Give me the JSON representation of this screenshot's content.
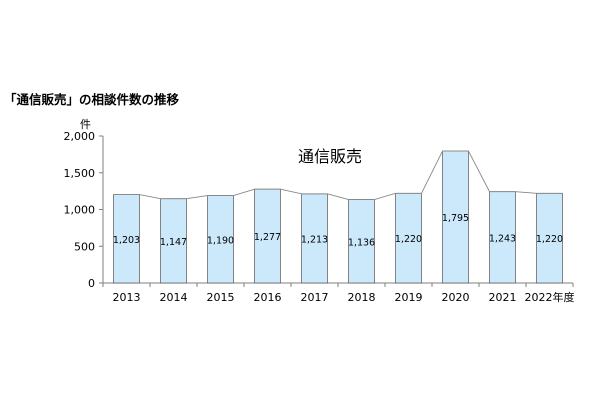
{
  "chart_data": {
    "type": "bar",
    "title": "「通信販売」の相談件数の推移",
    "ylabel": "件",
    "xlabel": "",
    "ylim": [
      0,
      2000
    ],
    "yticks": [
      "0",
      "500",
      "1,000",
      "1,500",
      "2,000"
    ],
    "ytick_values": [
      0,
      500,
      1000,
      1500,
      2000
    ],
    "categories": [
      "2013",
      "2014",
      "2015",
      "2016",
      "2017",
      "2018",
      "2019",
      "2020",
      "2021",
      "2022年度"
    ],
    "series": [
      {
        "name": "通信販売",
        "values": [
          1203,
          1147,
          1190,
          1277,
          1213,
          1136,
          1220,
          1795,
          1243,
          1220
        ],
        "value_labels": [
          "1,203",
          "1,147",
          "1,190",
          "1,277",
          "1,213",
          "1,136",
          "1,220",
          "1,795",
          "1,243",
          "1,220"
        ]
      }
    ],
    "grid": false,
    "bar_fill": "#cce8fb",
    "bar_stroke": "#555555",
    "line_color": "#888888"
  }
}
